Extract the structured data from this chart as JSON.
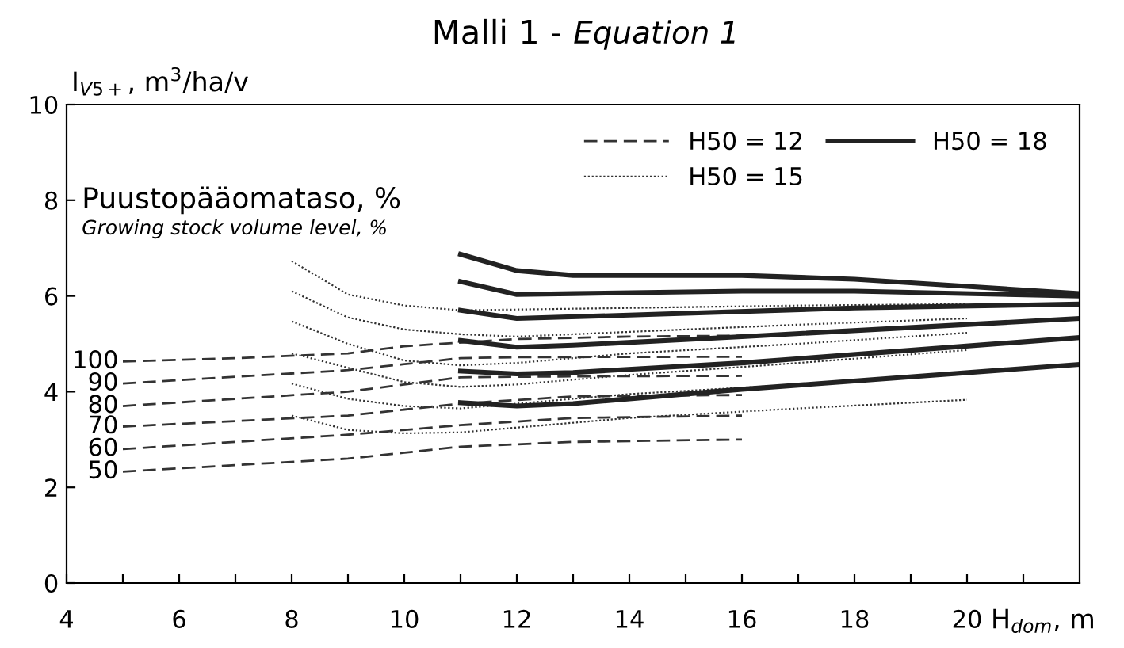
{
  "chart_data": {
    "type": "line",
    "title": "Malli 1 -",
    "subtitle": "Equation 1",
    "xlabel": "H$_{dom}$, m",
    "ylabel": "I$_{V5+}$, m$^{3}$/ha/v",
    "xlim": [
      4,
      22
    ],
    "ylim": [
      0,
      10
    ],
    "xticks": [
      4,
      {
        "value": 5,
        "label": null
      },
      6,
      {
        "value": 7,
        "label": null
      },
      8,
      {
        "value": 9,
        "label": null
      },
      10,
      {
        "value": 11,
        "label": null
      },
      12,
      {
        "value": 13,
        "label": null
      },
      14,
      {
        "value": 15,
        "label": null
      },
      16,
      {
        "value": 17,
        "label": null
      },
      18,
      {
        "value": 19,
        "label": null
      },
      20,
      {
        "value": 21,
        "label": null
      }
    ],
    "yticks": [
      0,
      2,
      4,
      6,
      8,
      10
    ],
    "grid": false,
    "legend": "top right",
    "marker": "none",
    "annotations": [
      "Puustopääomataso, %",
      "Growing stock volume level, %",
      "100",
      "90",
      "80",
      "70",
      "60",
      "50"
    ],
    "series": [
      {
        "name": "H50 = 12",
        "color": "#333333",
        "line_style": "dashed",
        "x": [
          5,
          7,
          9,
          10,
          12,
          14,
          16
        ],
        "values": [
          4.63,
          4.7,
          4.8,
          4.95,
          5.1,
          5.15,
          5.17
        ]
      },
      {
        "color": "#333333",
        "line_style": "dashed",
        "x": [
          5,
          9,
          11,
          12,
          16
        ],
        "values": [
          4.17,
          4.45,
          4.7,
          4.72,
          4.73
        ]
      },
      {
        "color": "#333333",
        "line_style": "dashed",
        "x": [
          5,
          9,
          11,
          13,
          16
        ],
        "values": [
          3.7,
          4.0,
          4.3,
          4.32,
          4.33
        ]
      },
      {
        "color": "#333333",
        "line_style": "dashed",
        "x": [
          5,
          9,
          11,
          13,
          16
        ],
        "values": [
          3.27,
          3.5,
          3.75,
          3.9,
          3.93
        ]
      },
      {
        "color": "#333333",
        "line_style": "dashed",
        "x": [
          5,
          9,
          11,
          13,
          16
        ],
        "values": [
          2.8,
          3.1,
          3.3,
          3.45,
          3.5
        ]
      },
      {
        "color": "#333333",
        "line_style": "dashed",
        "x": [
          5,
          9,
          11,
          13,
          16
        ],
        "values": [
          2.33,
          2.6,
          2.85,
          2.95,
          3.0
        ]
      },
      {
        "name": "H50 = 15",
        "color": "#333333",
        "line_style": "dotted",
        "x": [
          8,
          9,
          10,
          11,
          14,
          17,
          20
        ],
        "values": [
          6.73,
          6.03,
          5.8,
          5.7,
          5.75,
          5.8,
          5.83
        ]
      },
      {
        "color": "#333333",
        "line_style": "dotted",
        "x": [
          8,
          9,
          10,
          11,
          12,
          14,
          17,
          20
        ],
        "values": [
          6.1,
          5.55,
          5.3,
          5.2,
          5.15,
          5.25,
          5.4,
          5.53
        ]
      },
      {
        "color": "#333333",
        "line_style": "dotted",
        "x": [
          8,
          9,
          10,
          11,
          12,
          14,
          17,
          20
        ],
        "values": [
          5.47,
          5.0,
          4.65,
          4.55,
          4.6,
          4.8,
          5.0,
          5.23
        ]
      },
      {
        "color": "#333333",
        "line_style": "dotted",
        "x": [
          8,
          9,
          10,
          11,
          12,
          14,
          17,
          20
        ],
        "values": [
          4.8,
          4.5,
          4.2,
          4.1,
          4.15,
          4.35,
          4.6,
          4.87
        ]
      },
      {
        "color": "#333333",
        "line_style": "dotted",
        "x": [
          8,
          9,
          10,
          11,
          12,
          14,
          17,
          20
        ],
        "values": [
          4.17,
          3.85,
          3.7,
          3.65,
          3.75,
          3.95,
          4.15,
          4.37
        ]
      },
      {
        "color": "#333333",
        "line_style": "dotted",
        "x": [
          8,
          9,
          10,
          11,
          12,
          14,
          17,
          20
        ],
        "values": [
          3.5,
          3.2,
          3.13,
          3.15,
          3.25,
          3.45,
          3.65,
          3.83
        ]
      },
      {
        "name": "H50 = 18",
        "color": "#222222",
        "line_style": "solid",
        "x": [
          11,
          12,
          13,
          16,
          18,
          20,
          22
        ],
        "values": [
          6.87,
          6.53,
          6.43,
          6.43,
          6.35,
          6.2,
          6.05
        ]
      },
      {
        "color": "#222222",
        "line_style": "solid",
        "x": [
          11,
          12,
          13,
          16,
          18,
          22
        ],
        "values": [
          6.3,
          6.03,
          6.05,
          6.1,
          6.1,
          6.0
        ]
      },
      {
        "color": "#222222",
        "line_style": "solid",
        "x": [
          11,
          12,
          14,
          18,
          22
        ],
        "values": [
          5.7,
          5.53,
          5.6,
          5.75,
          5.83
        ]
      },
      {
        "color": "#222222",
        "line_style": "solid",
        "x": [
          11,
          12,
          13,
          16,
          22
        ],
        "values": [
          5.07,
          4.93,
          4.97,
          5.15,
          5.53
        ]
      },
      {
        "color": "#222222",
        "line_style": "solid",
        "x": [
          11,
          12,
          13,
          16,
          22
        ],
        "values": [
          4.43,
          4.37,
          4.4,
          4.6,
          5.13
        ]
      },
      {
        "color": "#222222",
        "line_style": "solid",
        "x": [
          11,
          12,
          13,
          16,
          22
        ],
        "values": [
          3.77,
          3.7,
          3.75,
          4.05,
          4.57
        ]
      }
    ]
  }
}
